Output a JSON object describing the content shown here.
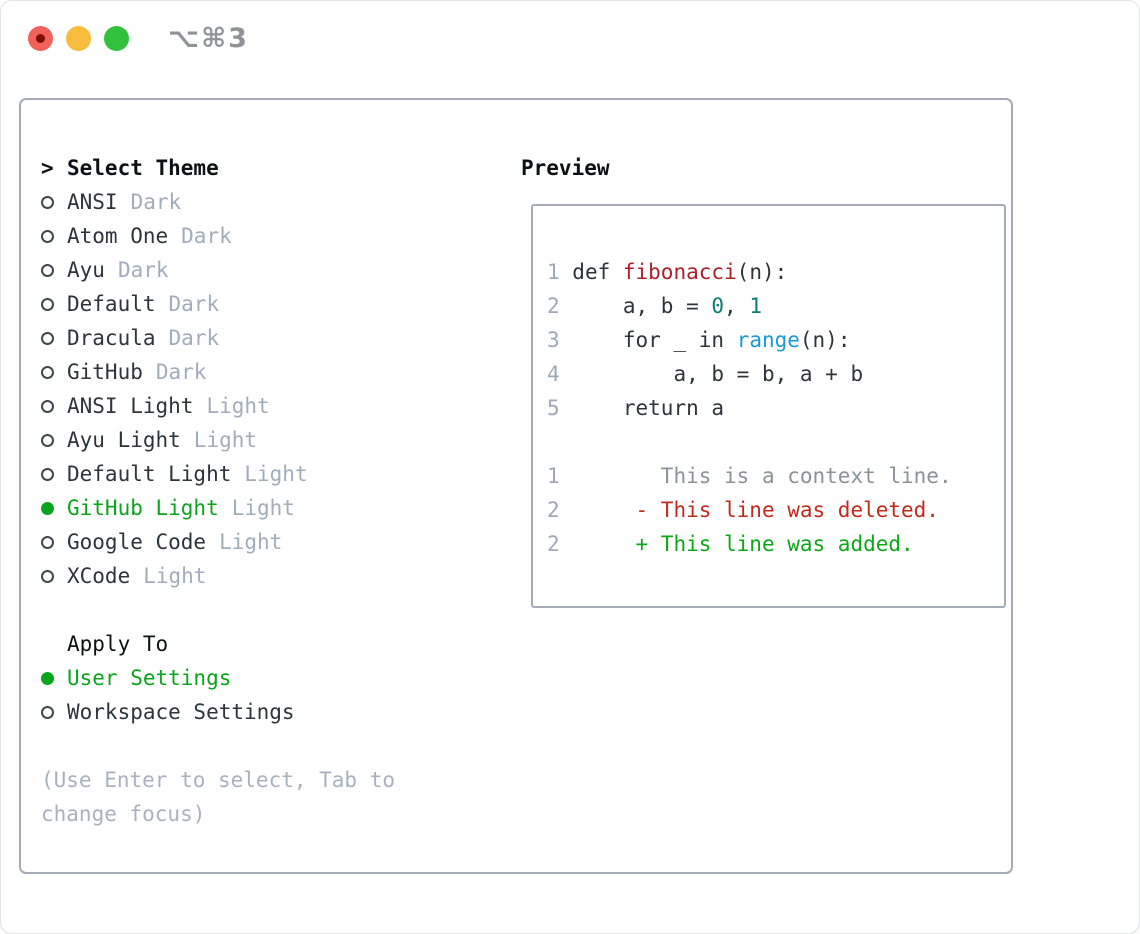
{
  "window": {
    "title": "⌥⌘3"
  },
  "selector": {
    "marker": ">",
    "title": "Select Theme",
    "items": [
      {
        "name": "ANSI",
        "variant": "Dark",
        "selected": false
      },
      {
        "name": "Atom One",
        "variant": "Dark",
        "selected": false
      },
      {
        "name": "Ayu",
        "variant": "Dark",
        "selected": false
      },
      {
        "name": "Default",
        "variant": "Dark",
        "selected": false
      },
      {
        "name": "Dracula",
        "variant": "Dark",
        "selected": false
      },
      {
        "name": "GitHub",
        "variant": "Dark",
        "selected": false
      },
      {
        "name": "ANSI Light",
        "variant": "Light",
        "selected": false
      },
      {
        "name": "Ayu Light",
        "variant": "Light",
        "selected": false
      },
      {
        "name": "Default Light",
        "variant": "Light",
        "selected": false
      },
      {
        "name": "GitHub Light",
        "variant": "Light",
        "selected": true
      },
      {
        "name": "Google Code",
        "variant": "Light",
        "selected": false
      },
      {
        "name": "XCode",
        "variant": "Light",
        "selected": false
      }
    ],
    "apply_to": {
      "title": "Apply To",
      "options": [
        {
          "label": "User Settings",
          "selected": true
        },
        {
          "label": "Workspace Settings",
          "selected": false
        }
      ]
    },
    "hint_lines": [
      "(Use Enter to select, Tab to",
      "change focus)"
    ]
  },
  "preview": {
    "title": "Preview",
    "lines": [
      {
        "blank": true
      },
      {
        "num": "1",
        "segs": [
          {
            "t": "def ",
            "c": "code"
          },
          {
            "t": "fibonacci",
            "c": "func"
          },
          {
            "t": "(n):",
            "c": "code"
          }
        ]
      },
      {
        "num": "2",
        "segs": [
          {
            "t": "    a, b = ",
            "c": "code"
          },
          {
            "t": "0",
            "c": "lit"
          },
          {
            "t": ", ",
            "c": "code"
          },
          {
            "t": "1",
            "c": "lit"
          }
        ]
      },
      {
        "num": "3",
        "segs": [
          {
            "t": "    for _ in ",
            "c": "code"
          },
          {
            "t": "range",
            "c": "call"
          },
          {
            "t": "(n):",
            "c": "code"
          }
        ]
      },
      {
        "num": "4",
        "segs": [
          {
            "t": "        a, b = b, a + b",
            "c": "code"
          }
        ]
      },
      {
        "num": "5",
        "segs": [
          {
            "t": "    return a",
            "c": "code"
          }
        ]
      },
      {
        "blank": true
      },
      {
        "num": "1",
        "segs": [
          {
            "t": "       This is a context line.",
            "c": "ctx"
          }
        ]
      },
      {
        "num": "2",
        "segs": [
          {
            "t": "     - This line was deleted.",
            "c": "del"
          }
        ]
      },
      {
        "num": "2",
        "segs": [
          {
            "t": "     + This line was added.",
            "c": "add"
          }
        ]
      },
      {
        "blank": true
      }
    ]
  },
  "colors": {
    "accent_green": "#0aa41d",
    "panel_border": "#a4acb5",
    "text_dark": "#2e343b",
    "text_muted": "#a2adbb",
    "hint": "#a8b2bf",
    "line_number": "#9da9b7",
    "syntax_function_red": "#b01f28",
    "syntax_literal_teal": "#0b7d74",
    "syntax_call_blue": "#1b99d5",
    "diff_context_gray": "#8c9299",
    "diff_deleted_red": "#c32a1e",
    "diff_added_green": "#0ca817",
    "traffic_red": "#f2605a",
    "traffic_yellow": "#f8bd3d",
    "traffic_green": "#32c13d",
    "title_gray": "#8f9297"
  }
}
